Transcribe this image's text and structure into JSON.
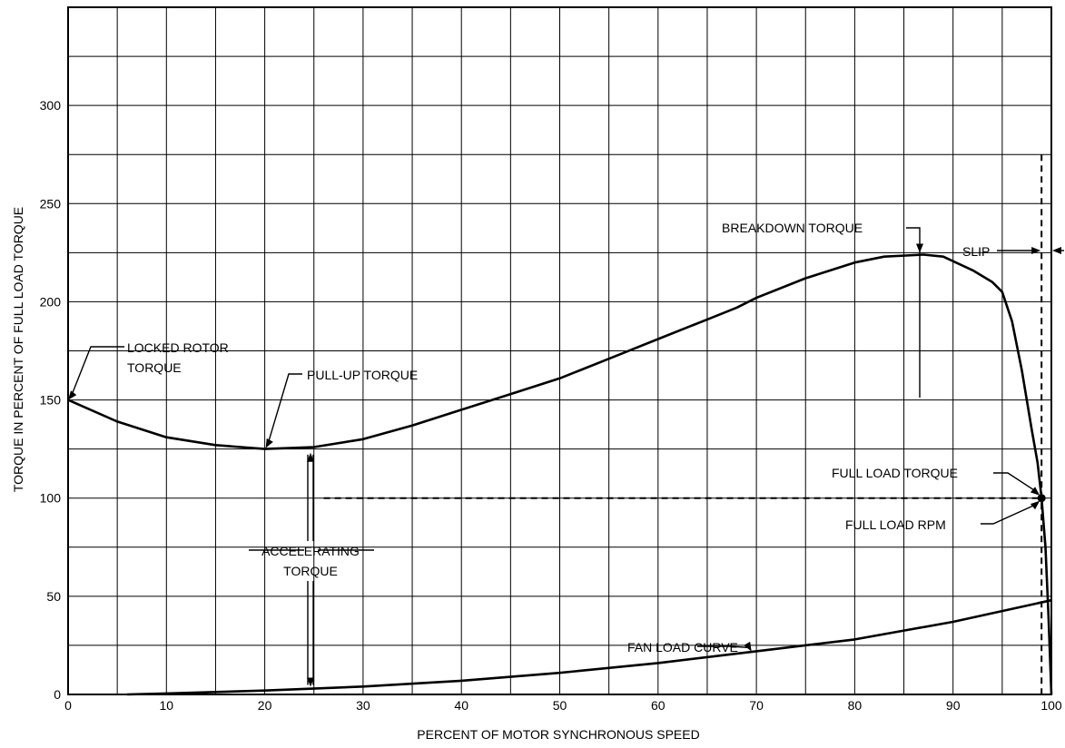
{
  "chart_data": {
    "type": "line",
    "title": "",
    "xlabel": "PERCENT OF MOTOR SYNCHRONOUS SPEED",
    "ylabel": "TORQUE IN PERCENT OF FULL LOAD TORQUE",
    "xlim": [
      0,
      100
    ],
    "ylim": [
      0,
      350
    ],
    "grid": true,
    "x_ticks": [
      "0",
      "10",
      "20",
      "30",
      "40",
      "50",
      "60",
      "70",
      "80",
      "90",
      "100"
    ],
    "y_ticks": [
      "0",
      "50",
      "100",
      "150",
      "200",
      "250",
      "300"
    ],
    "series": [
      {
        "role": "motor-torque",
        "points": [
          [
            0,
            150
          ],
          [
            5,
            139
          ],
          [
            10,
            131
          ],
          [
            15,
            127
          ],
          [
            20,
            125
          ],
          [
            25,
            126
          ],
          [
            30,
            130
          ],
          [
            35,
            137
          ],
          [
            40,
            145
          ],
          [
            45,
            153
          ],
          [
            50,
            161
          ],
          [
            55,
            171
          ],
          [
            60,
            181
          ],
          [
            65,
            191
          ],
          [
            68,
            197
          ],
          [
            70,
            202
          ],
          [
            75,
            212
          ],
          [
            80,
            220
          ],
          [
            83,
            223
          ],
          [
            87,
            224
          ],
          [
            89,
            223
          ],
          [
            92,
            216
          ],
          [
            94,
            210
          ],
          [
            95,
            205
          ],
          [
            96,
            190
          ],
          [
            97,
            165
          ],
          [
            98,
            135
          ],
          [
            98.6,
            118
          ],
          [
            99,
            100
          ],
          [
            99.4,
            75
          ],
          [
            99.7,
            40
          ],
          [
            100,
            0
          ]
        ]
      },
      {
        "role": "fan-load",
        "name": "FAN LOAD CURVE",
        "points": [
          [
            6,
            0
          ],
          [
            10,
            0.5
          ],
          [
            20,
            2
          ],
          [
            30,
            4
          ],
          [
            40,
            7
          ],
          [
            50,
            11
          ],
          [
            60,
            16
          ],
          [
            70,
            22
          ],
          [
            80,
            28
          ],
          [
            90,
            37
          ],
          [
            100,
            48
          ]
        ]
      }
    ],
    "full_load_point": {
      "x": 99,
      "y": 100
    },
    "annotations": {
      "locked_rotor": [
        "LOCKED ROTOR",
        "TORQUE"
      ],
      "pull_up": "PULL-UP TORQUE",
      "breakdown": "BREAKDOWN TORQUE",
      "accelerating": [
        "ACCELERATING",
        "TORQUE"
      ],
      "full_load_torque": "FULL LOAD TORQUE",
      "full_load_rpm": "FULL LOAD RPM",
      "slip": "SLIP",
      "fan_load": "FAN LOAD CURVE"
    }
  }
}
